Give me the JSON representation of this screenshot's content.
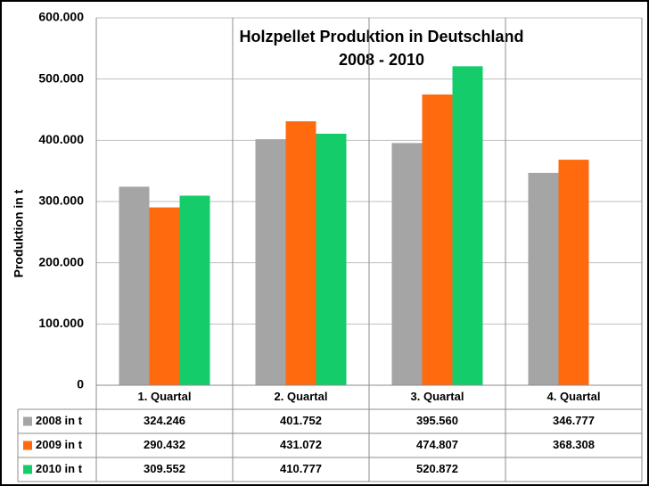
{
  "chart_data": {
    "type": "bar",
    "title": "Holzpellet Produktion in Deutschland",
    "subtitle": "2008 - 2010",
    "y_label": "Produktion in t",
    "categories": [
      "1. Quartal",
      "2. Quartal",
      "3. Quartal",
      "4. Quartal"
    ],
    "series": [
      {
        "name": "2008 in t",
        "color": "#a5a5a5",
        "values": [
          324246,
          401752,
          395560,
          346777
        ],
        "value_labels": [
          "324.246",
          "401.752",
          "395.560",
          "346.777"
        ]
      },
      {
        "name": "2009 in t",
        "color": "#ff6a0e",
        "values": [
          290432,
          431072,
          474807,
          368308
        ],
        "value_labels": [
          "290.432",
          "431.072",
          "474.807",
          "368.308"
        ]
      },
      {
        "name": "2010 in t",
        "color": "#14cc6a",
        "values": [
          309552,
          410777,
          520872,
          null
        ],
        "value_labels": [
          "309.552",
          "410.777",
          "520.872",
          null
        ]
      }
    ],
    "ylim": [
      0,
      600000
    ],
    "yticks": [
      0,
      {
        "value": 100000,
        "label": "100.000"
      },
      {
        "value": 200000,
        "label": "200.000"
      },
      {
        "value": 300000,
        "label": "300.000"
      },
      {
        "value": 400000,
        "label": "400.000"
      },
      {
        "value": 500000,
        "label": "500.000"
      },
      {
        "value": 600000,
        "label": "600.000"
      }
    ],
    "grid": true
  }
}
